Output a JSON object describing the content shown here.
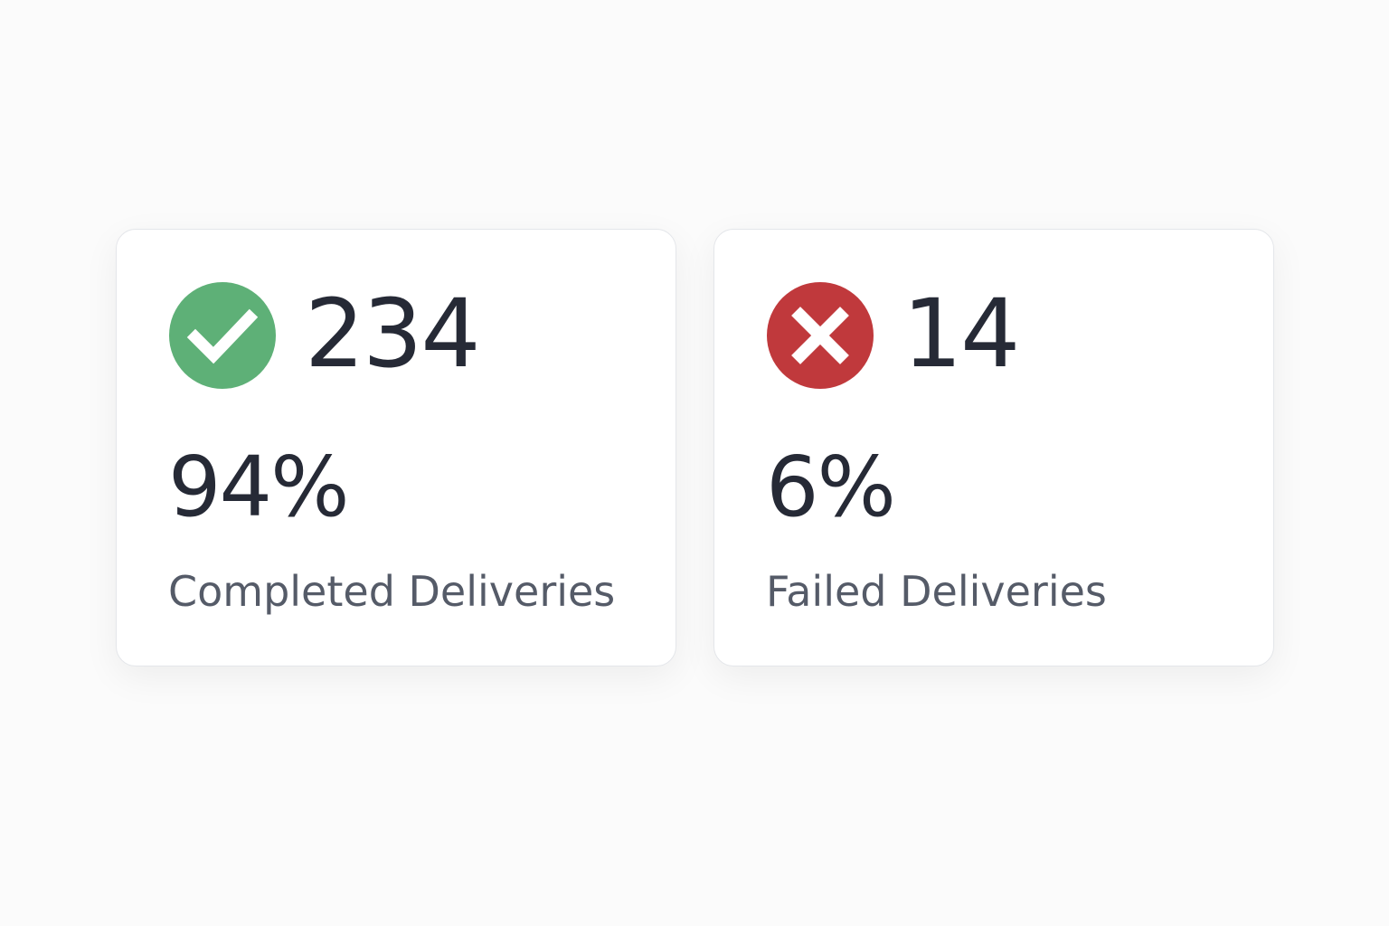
{
  "cards": [
    {
      "status": "completed",
      "count": 234,
      "percent": "94%",
      "label": "Completed Deliveries"
    },
    {
      "status": "failed",
      "count": 14,
      "percent": "6%",
      "label": "Failed Deliveries"
    }
  ]
}
